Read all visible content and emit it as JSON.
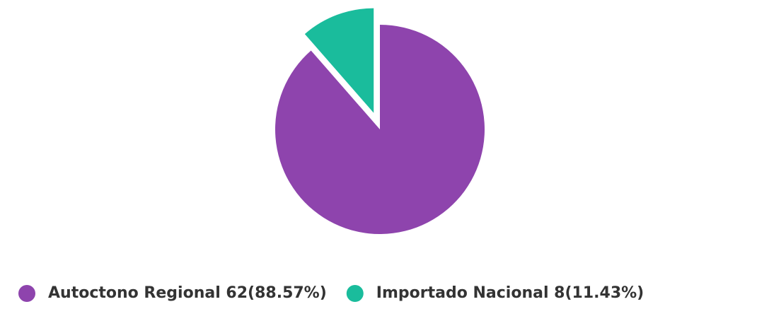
{
  "chart_data": {
    "type": "pie",
    "categories": [
      "Autoctono Regional",
      "Importado Nacional"
    ],
    "values": [
      62,
      8
    ],
    "value_labels": [
      "62(88.57%)",
      "8(11.43%)"
    ],
    "colors": [
      "#8e44ad",
      "#1abc9c"
    ],
    "legend": "bottom"
  }
}
